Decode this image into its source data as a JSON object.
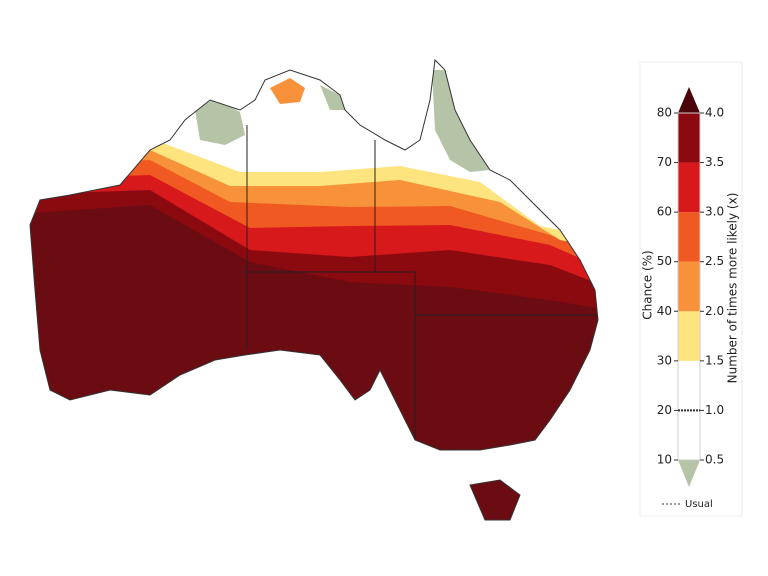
{
  "colorbar": {
    "left_label": "Chance (%)",
    "right_label": "Number of times more likely (x)",
    "chance_ticks": [
      10,
      20,
      30,
      40,
      50,
      60,
      70,
      80
    ],
    "ratio_ticks": [
      0.5,
      {
        "value": 1.0,
        "label": "1.0"
      },
      1.5,
      {
        "value": 2.0,
        "label": "2.0"
      },
      2.5,
      {
        "value": 3.0,
        "label": "3.0"
      },
      3.5,
      {
        "value": 4.0,
        "label": "4.0"
      }
    ],
    "band_colors": [
      "#ffffff",
      "#ffffff",
      "#fde47f",
      "#f8923a",
      "#f05a22",
      "#d7191c",
      "#8b0a10"
    ],
    "under_color": "#b5c4a6",
    "over_color": "#4a0308",
    "usual": {
      "label": "Usual",
      "value": 1.0
    }
  }
}
